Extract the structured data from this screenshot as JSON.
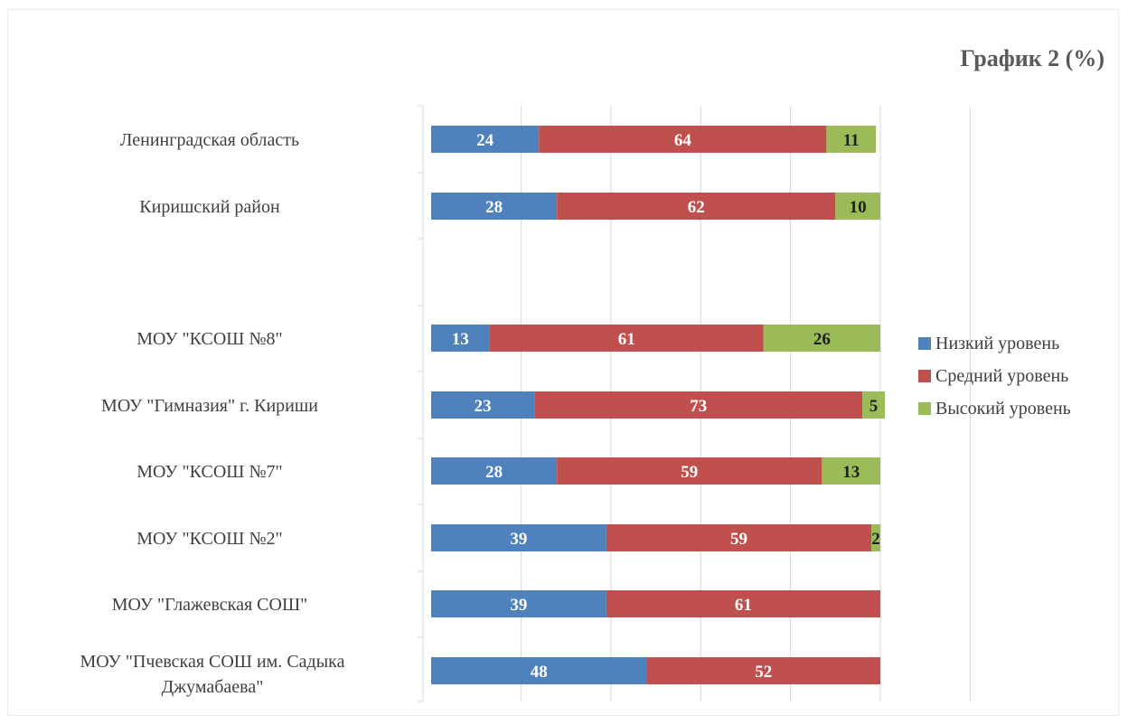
{
  "chart_data": {
    "type": "bar",
    "orientation": "horizontal",
    "stacked": true,
    "title": "График 2 (%)",
    "xlim": [
      0,
      120
    ],
    "grid": true,
    "legend_position": "right",
    "categories": [
      "Ленинградская область",
      "Киришский район",
      "",
      "МОУ \"КСОШ №8\"",
      "МОУ \"Гимназия\" г. Кириши",
      "МОУ \"КСОШ №7\"",
      "МОУ \"КСОШ №2\"",
      "МОУ \"Глажевская СОШ\"",
      "МОУ \"Пчевская СОШ им. Садыка Джумабаева\""
    ],
    "series": [
      {
        "name": "Низкий уровень",
        "color": "#4f81bd",
        "label_color": "#ffffff",
        "values": [
          24,
          28,
          null,
          13,
          23,
          28,
          39,
          39,
          48
        ]
      },
      {
        "name": "Средний уровень",
        "color": "#c0504d",
        "label_color": "#ffffff",
        "values": [
          64,
          62,
          null,
          61,
          73,
          59,
          59,
          61,
          52
        ]
      },
      {
        "name": "Высокий уровень",
        "color": "#9bbb59",
        "label_color": "#1f1f1f",
        "values": [
          11,
          10,
          null,
          26,
          5,
          13,
          2,
          null,
          null
        ]
      }
    ]
  }
}
